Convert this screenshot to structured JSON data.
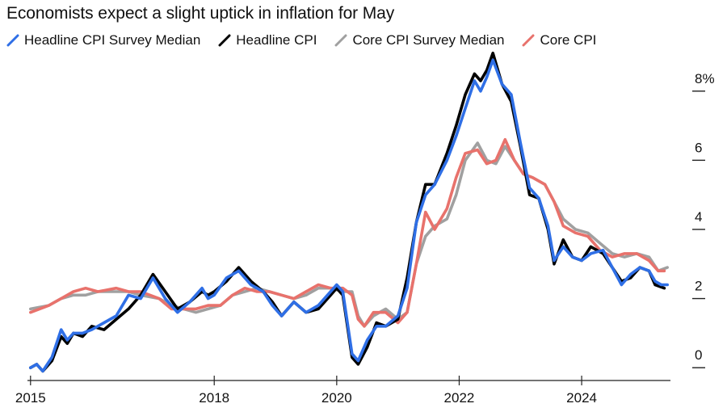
{
  "title": "Economists expect a slight uptick in inflation for May",
  "chart_data": {
    "type": "line",
    "title": "Economists expect a slight uptick in inflation for May",
    "xlabel": "",
    "ylabel": "",
    "xlim": [
      2014.95,
      2025.45
    ],
    "ylim": [
      -0.3,
      9.0
    ],
    "x_ticks": [
      {
        "value": 2015,
        "label": "2015"
      },
      {
        "value": 2018,
        "label": "2018"
      },
      {
        "value": 2020,
        "label": "2020"
      },
      {
        "value": 2022,
        "label": "2022"
      },
      {
        "value": 2024,
        "label": "2024"
      }
    ],
    "y_ticks": [
      {
        "value": 0,
        "label": "0"
      },
      {
        "value": 2,
        "label": "2"
      },
      {
        "value": 4,
        "label": "4"
      },
      {
        "value": 6,
        "label": "6"
      },
      {
        "value": 8,
        "label": "8%"
      }
    ],
    "series": [
      {
        "name": "Core CPI Survey Median",
        "color": "#a0a0a0",
        "points": [
          [
            2015.0,
            1.7
          ],
          [
            2015.3,
            1.8
          ],
          [
            2015.5,
            2.0
          ],
          [
            2015.7,
            2.1
          ],
          [
            2015.9,
            2.1
          ],
          [
            2016.1,
            2.2
          ],
          [
            2016.4,
            2.2
          ],
          [
            2016.6,
            2.2
          ],
          [
            2016.8,
            2.1
          ],
          [
            2017.1,
            2.0
          ],
          [
            2017.3,
            1.8
          ],
          [
            2017.5,
            1.7
          ],
          [
            2017.7,
            1.6
          ],
          [
            2017.9,
            1.7
          ],
          [
            2018.1,
            1.8
          ],
          [
            2018.3,
            2.1
          ],
          [
            2018.5,
            2.2
          ],
          [
            2018.7,
            2.3
          ],
          [
            2018.9,
            2.2
          ],
          [
            2019.1,
            2.1
          ],
          [
            2019.3,
            2.0
          ],
          [
            2019.5,
            2.1
          ],
          [
            2019.7,
            2.3
          ],
          [
            2019.9,
            2.3
          ],
          [
            2020.1,
            2.2
          ],
          [
            2020.25,
            2.2
          ],
          [
            2020.35,
            1.5
          ],
          [
            2020.45,
            1.2
          ],
          [
            2020.6,
            1.5
          ],
          [
            2020.8,
            1.7
          ],
          [
            2021.0,
            1.4
          ],
          [
            2021.15,
            1.6
          ],
          [
            2021.3,
            3.0
          ],
          [
            2021.45,
            3.8
          ],
          [
            2021.6,
            4.1
          ],
          [
            2021.8,
            4.3
          ],
          [
            2021.95,
            5.0
          ],
          [
            2022.1,
            6.0
          ],
          [
            2022.3,
            6.5
          ],
          [
            2022.45,
            6.0
          ],
          [
            2022.6,
            5.9
          ],
          [
            2022.75,
            6.4
          ],
          [
            2022.9,
            6.0
          ],
          [
            2023.05,
            5.6
          ],
          [
            2023.2,
            5.5
          ],
          [
            2023.4,
            5.3
          ],
          [
            2023.55,
            4.8
          ],
          [
            2023.7,
            4.3
          ],
          [
            2023.9,
            4.0
          ],
          [
            2024.1,
            3.9
          ],
          [
            2024.3,
            3.6
          ],
          [
            2024.5,
            3.3
          ],
          [
            2024.7,
            3.2
          ],
          [
            2024.9,
            3.3
          ],
          [
            2025.1,
            3.2
          ],
          [
            2025.25,
            2.8
          ],
          [
            2025.4,
            2.9
          ]
        ]
      },
      {
        "name": "Core CPI",
        "color": "#e8726c",
        "points": [
          [
            2015.0,
            1.6
          ],
          [
            2015.3,
            1.8
          ],
          [
            2015.5,
            2.0
          ],
          [
            2015.7,
            2.2
          ],
          [
            2015.9,
            2.3
          ],
          [
            2016.1,
            2.2
          ],
          [
            2016.4,
            2.3
          ],
          [
            2016.6,
            2.2
          ],
          [
            2016.8,
            2.2
          ],
          [
            2017.1,
            2.0
          ],
          [
            2017.3,
            1.7
          ],
          [
            2017.5,
            1.7
          ],
          [
            2017.7,
            1.7
          ],
          [
            2017.9,
            1.8
          ],
          [
            2018.1,
            1.8
          ],
          [
            2018.3,
            2.1
          ],
          [
            2018.5,
            2.3
          ],
          [
            2018.7,
            2.2
          ],
          [
            2018.9,
            2.2
          ],
          [
            2019.1,
            2.1
          ],
          [
            2019.3,
            2.0
          ],
          [
            2019.5,
            2.2
          ],
          [
            2019.7,
            2.4
          ],
          [
            2019.9,
            2.3
          ],
          [
            2020.1,
            2.3
          ],
          [
            2020.25,
            2.1
          ],
          [
            2020.35,
            1.4
          ],
          [
            2020.45,
            1.2
          ],
          [
            2020.6,
            1.6
          ],
          [
            2020.8,
            1.6
          ],
          [
            2021.0,
            1.3
          ],
          [
            2021.15,
            1.6
          ],
          [
            2021.3,
            3.0
          ],
          [
            2021.45,
            4.5
          ],
          [
            2021.6,
            4.0
          ],
          [
            2021.8,
            4.6
          ],
          [
            2021.95,
            5.5
          ],
          [
            2022.1,
            6.2
          ],
          [
            2022.3,
            6.3
          ],
          [
            2022.45,
            5.9
          ],
          [
            2022.6,
            6.0
          ],
          [
            2022.75,
            6.6
          ],
          [
            2022.9,
            6.0
          ],
          [
            2023.05,
            5.6
          ],
          [
            2023.2,
            5.5
          ],
          [
            2023.4,
            5.3
          ],
          [
            2023.55,
            4.8
          ],
          [
            2023.7,
            4.1
          ],
          [
            2023.9,
            3.9
          ],
          [
            2024.1,
            3.8
          ],
          [
            2024.3,
            3.4
          ],
          [
            2024.5,
            3.2
          ],
          [
            2024.7,
            3.3
          ],
          [
            2024.9,
            3.3
          ],
          [
            2025.1,
            3.1
          ],
          [
            2025.25,
            2.8
          ],
          [
            2025.35,
            2.8
          ]
        ]
      },
      {
        "name": "Headline CPI",
        "color": "#000000",
        "points": [
          [
            2015.0,
            0.0
          ],
          [
            2015.1,
            0.1
          ],
          [
            2015.2,
            -0.1
          ],
          [
            2015.35,
            0.2
          ],
          [
            2015.5,
            0.9
          ],
          [
            2015.6,
            0.7
          ],
          [
            2015.7,
            1.0
          ],
          [
            2015.85,
            0.9
          ],
          [
            2016.0,
            1.2
          ],
          [
            2016.2,
            1.1
          ],
          [
            2016.4,
            1.4
          ],
          [
            2016.6,
            1.7
          ],
          [
            2016.8,
            2.1
          ],
          [
            2017.0,
            2.7
          ],
          [
            2017.2,
            2.2
          ],
          [
            2017.4,
            1.7
          ],
          [
            2017.6,
            1.9
          ],
          [
            2017.8,
            2.2
          ],
          [
            2017.9,
            2.1
          ],
          [
            2018.0,
            2.2
          ],
          [
            2018.2,
            2.5
          ],
          [
            2018.4,
            2.9
          ],
          [
            2018.6,
            2.5
          ],
          [
            2018.8,
            2.2
          ],
          [
            2018.95,
            1.9
          ],
          [
            2019.1,
            1.5
          ],
          [
            2019.3,
            1.9
          ],
          [
            2019.5,
            1.6
          ],
          [
            2019.7,
            1.7
          ],
          [
            2019.9,
            2.1
          ],
          [
            2020.0,
            2.3
          ],
          [
            2020.1,
            2.1
          ],
          [
            2020.25,
            0.3
          ],
          [
            2020.35,
            0.1
          ],
          [
            2020.5,
            0.6
          ],
          [
            2020.65,
            1.3
          ],
          [
            2020.8,
            1.2
          ],
          [
            2021.0,
            1.4
          ],
          [
            2021.15,
            2.6
          ],
          [
            2021.3,
            4.2
          ],
          [
            2021.45,
            5.3
          ],
          [
            2021.6,
            5.3
          ],
          [
            2021.8,
            6.2
          ],
          [
            2021.95,
            7.0
          ],
          [
            2022.1,
            7.9
          ],
          [
            2022.25,
            8.5
          ],
          [
            2022.35,
            8.3
          ],
          [
            2022.45,
            8.6
          ],
          [
            2022.55,
            9.1
          ],
          [
            2022.7,
            8.2
          ],
          [
            2022.85,
            7.7
          ],
          [
            2023.0,
            6.4
          ],
          [
            2023.15,
            5.0
          ],
          [
            2023.3,
            4.9
          ],
          [
            2023.45,
            4.0
          ],
          [
            2023.55,
            3.0
          ],
          [
            2023.7,
            3.7
          ],
          [
            2023.85,
            3.2
          ],
          [
            2024.0,
            3.1
          ],
          [
            2024.15,
            3.5
          ],
          [
            2024.35,
            3.3
          ],
          [
            2024.5,
            2.9
          ],
          [
            2024.65,
            2.5
          ],
          [
            2024.8,
            2.6
          ],
          [
            2024.95,
            2.9
          ],
          [
            2025.1,
            2.8
          ],
          [
            2025.2,
            2.4
          ],
          [
            2025.35,
            2.3
          ]
        ]
      },
      {
        "name": "Headline CPI Survey Median",
        "color": "#2f6fe6",
        "points": [
          [
            2015.0,
            0.0
          ],
          [
            2015.1,
            0.1
          ],
          [
            2015.2,
            -0.1
          ],
          [
            2015.35,
            0.3
          ],
          [
            2015.5,
            1.1
          ],
          [
            2015.6,
            0.8
          ],
          [
            2015.7,
            1.0
          ],
          [
            2015.85,
            1.0
          ],
          [
            2016.0,
            1.1
          ],
          [
            2016.2,
            1.3
          ],
          [
            2016.4,
            1.5
          ],
          [
            2016.6,
            2.1
          ],
          [
            2016.8,
            2.0
          ],
          [
            2017.0,
            2.6
          ],
          [
            2017.2,
            2.0
          ],
          [
            2017.4,
            1.6
          ],
          [
            2017.6,
            1.9
          ],
          [
            2017.8,
            2.3
          ],
          [
            2017.9,
            2.0
          ],
          [
            2018.0,
            2.1
          ],
          [
            2018.2,
            2.6
          ],
          [
            2018.4,
            2.8
          ],
          [
            2018.6,
            2.4
          ],
          [
            2018.8,
            2.2
          ],
          [
            2018.95,
            1.8
          ],
          [
            2019.1,
            1.5
          ],
          [
            2019.3,
            1.9
          ],
          [
            2019.5,
            1.6
          ],
          [
            2019.7,
            1.8
          ],
          [
            2019.9,
            2.2
          ],
          [
            2020.0,
            2.4
          ],
          [
            2020.1,
            2.2
          ],
          [
            2020.25,
            0.4
          ],
          [
            2020.35,
            0.2
          ],
          [
            2020.5,
            0.8
          ],
          [
            2020.65,
            1.2
          ],
          [
            2020.8,
            1.2
          ],
          [
            2021.0,
            1.5
          ],
          [
            2021.15,
            2.3
          ],
          [
            2021.3,
            4.2
          ],
          [
            2021.45,
            5.0
          ],
          [
            2021.6,
            5.3
          ],
          [
            2021.8,
            6.0
          ],
          [
            2021.95,
            6.7
          ],
          [
            2022.1,
            7.5
          ],
          [
            2022.25,
            8.3
          ],
          [
            2022.35,
            8.0
          ],
          [
            2022.45,
            8.4
          ],
          [
            2022.55,
            8.9
          ],
          [
            2022.7,
            8.2
          ],
          [
            2022.85,
            7.9
          ],
          [
            2023.0,
            6.5
          ],
          [
            2023.15,
            5.2
          ],
          [
            2023.3,
            4.9
          ],
          [
            2023.45,
            4.1
          ],
          [
            2023.55,
            3.1
          ],
          [
            2023.7,
            3.5
          ],
          [
            2023.85,
            3.2
          ],
          [
            2024.0,
            3.1
          ],
          [
            2024.15,
            3.3
          ],
          [
            2024.35,
            3.4
          ],
          [
            2024.5,
            2.9
          ],
          [
            2024.65,
            2.4
          ],
          [
            2024.8,
            2.7
          ],
          [
            2024.95,
            2.9
          ],
          [
            2025.1,
            2.8
          ],
          [
            2025.2,
            2.5
          ],
          [
            2025.3,
            2.4
          ],
          [
            2025.4,
            2.4
          ]
        ]
      }
    ]
  },
  "legend": [
    {
      "label": "Headline CPI Survey Median",
      "color": "#2f6fe6"
    },
    {
      "label": "Headline CPI",
      "color": "#000000"
    },
    {
      "label": "Core CPI Survey Median",
      "color": "#a0a0a0"
    },
    {
      "label": "Core CPI",
      "color": "#e8726c"
    }
  ]
}
